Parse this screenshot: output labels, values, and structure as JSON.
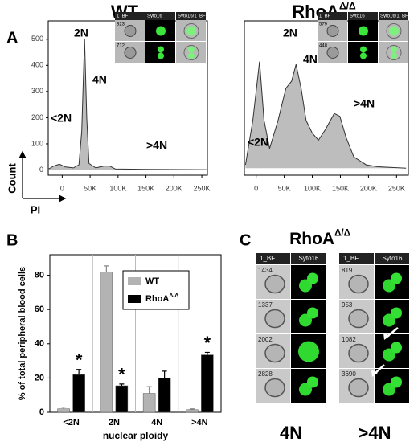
{
  "labels": [
    "A",
    "B",
    "C"
  ],
  "chart_data": [
    {
      "type": "area",
      "title": "WT",
      "y_label": "Count",
      "x_label": "PI",
      "color": "#bdbdbd",
      "x": [
        -25000,
        -15000,
        -5000,
        5000,
        20000,
        30000,
        35000,
        40000,
        44000,
        48000,
        60000,
        75000,
        85000,
        95000,
        150000,
        260000
      ],
      "values": [
        3,
        15,
        22,
        12,
        8,
        20,
        150,
        500,
        200,
        25,
        8,
        15,
        15,
        4,
        2,
        1
      ],
      "xlim": [
        -25000,
        260000
      ],
      "ylim": [
        -20,
        570
      ],
      "xticks": [
        0,
        {
          "value": 50000,
          "label": "50K"
        },
        {
          "value": 100000,
          "label": "100K"
        },
        {
          "value": 150000,
          "label": "150K"
        },
        {
          "value": 200000,
          "label": "200K"
        },
        {
          "value": 250000,
          "label": "250K"
        }
      ],
      "yticks": [
        0,
        100,
        200,
        300,
        400,
        500
      ],
      "annotations": [
        "2N",
        "4N",
        ">4N",
        "<2N"
      ],
      "inset": {
        "headers": [
          "1_BF",
          "Syto16",
          "Syto16/1_BF"
        ],
        "ids": [
          "823",
          "712"
        ]
      }
    },
    {
      "type": "area",
      "title": "RhoA",
      "title_superscript": "Δ/Δ",
      "color": "#bdbdbd",
      "x": [
        -19000,
        -6000,
        6000,
        14000,
        24000,
        39000,
        53000,
        63000,
        71000,
        80000,
        89000,
        100000,
        111000,
        124000,
        139000,
        149000,
        160000,
        174000,
        196000,
        217000,
        267000
      ],
      "values": [
        2.4,
        34,
        76,
        34,
        14,
        34,
        57,
        62,
        74,
        57,
        34,
        25,
        20,
        28,
        39,
        37,
        22,
        8,
        2.4,
        1,
        0
      ],
      "xlim": [
        -21000,
        271000
      ],
      "ylim": [
        -5,
        105
      ],
      "xticks": [
        0,
        {
          "value": 50000,
          "label": "50K"
        },
        {
          "value": 100000,
          "label": "100K"
        },
        {
          "value": 150000,
          "label": "150K"
        },
        {
          "value": 200000,
          "label": "200K"
        },
        {
          "value": 250000,
          "label": "250K"
        }
      ],
      "annotations": [
        "2N",
        "4N",
        ">4N",
        "<2N"
      ],
      "inset": {
        "headers": [
          "1_BF",
          "Syto16",
          "Syto16/1_BF"
        ],
        "ids": [
          "579",
          "448"
        ]
      }
    },
    {
      "type": "bar",
      "y_label": "% of total peripheral blood cells",
      "x_label": "nuclear ploidy",
      "categories": [
        "<2N",
        "2N",
        "4N",
        ">4N"
      ],
      "series": [
        {
          "name": "WT",
          "color": "#b3b3b3",
          "values": [
            2,
            82,
            11,
            1.5
          ],
          "errors": [
            1,
            3.5,
            4,
            0.5
          ]
        },
        {
          "name": "RhoA",
          "name_superscript": "Δ/Δ",
          "color": "#000000",
          "values": [
            22,
            15.5,
            20,
            33.5
          ],
          "errors": [
            3,
            1,
            4,
            1.5
          ],
          "significance": [
            "*",
            "*",
            null,
            "*"
          ]
        }
      ],
      "ylim": [
        0,
        92
      ],
      "yticks": [
        0,
        20,
        40,
        60,
        80
      ],
      "legend": "upper right"
    }
  ],
  "panel_c": {
    "title": "RhoA",
    "title_superscript": "Δ/Δ",
    "columns": [
      {
        "label": "4N",
        "headers": [
          "1_BF",
          "Syto16"
        ],
        "ids": [
          "1434",
          "1337",
          "2002",
          "2828"
        ]
      },
      {
        "label": ">4N",
        "headers": [
          "1_BF",
          "Syto16"
        ],
        "ids": [
          "819",
          "953",
          "1082",
          "3690"
        ]
      }
    ]
  }
}
